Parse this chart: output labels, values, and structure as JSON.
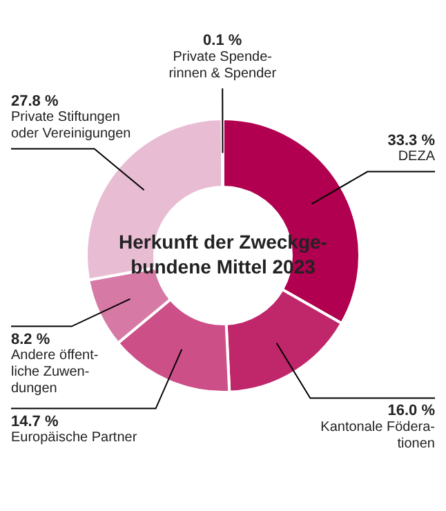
{
  "chart_data": {
    "type": "donut",
    "title": "Herkunft der Zweckge-\nbundene Mittel 2023",
    "categories": [
      "DEZA",
      "Kantonale Födera-\ntionen",
      "Europäische Partner",
      "Andere öffent-\nliche Zuwen-\ndungen",
      "Private Stiftungen\noder Vereinigungen",
      "Private Spende-\nrinnen & Spender"
    ],
    "values": [
      33.3,
      16.0,
      14.7,
      8.2,
      27.8,
      0.1
    ],
    "colors": [
      "#b0004f",
      "#c0266a",
      "#cc4f88",
      "#d67aa5",
      "#e8bcd2",
      "#f0d0e0"
    ],
    "value_labels": [
      "33.3 %",
      "16.0 %",
      "14.7 %",
      "8.2 %",
      "27.8 %",
      "0.1 %"
    ],
    "legend": false
  }
}
